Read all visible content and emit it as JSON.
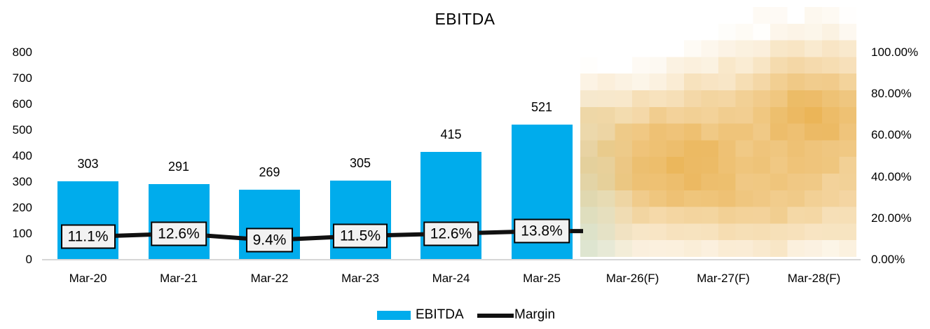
{
  "title": "EBITDA",
  "legend": {
    "items": [
      {
        "label": "EBITDA",
        "swatch": "bar"
      },
      {
        "label": "Margin",
        "swatch": "line"
      }
    ]
  },
  "colors": {
    "bar": "#00ACEC",
    "line": "#111111",
    "axis_line": "#d6d6d6",
    "label_box_bg": "#f2f2f2",
    "label_box_border": "#000000",
    "blur_amber": "#E9AF4B",
    "blur_green": "#C6D8BC",
    "blur_base": "#FFFFFF",
    "text": "#000000"
  },
  "axes": {
    "left": {
      "ticks": [
        {
          "label": "800",
          "value": 800
        },
        {
          "label": "700",
          "value": 700
        },
        {
          "label": "600",
          "value": 600
        },
        {
          "label": "500",
          "value": 500
        },
        {
          "label": "400",
          "value": 400
        },
        {
          "label": "300",
          "value": 300
        },
        {
          "label": "200",
          "value": 200
        },
        {
          "label": "100",
          "value": 100
        },
        {
          "label": "0",
          "value": 0
        }
      ]
    },
    "right": {
      "ticks": [
        {
          "label": "100.00%",
          "value": 100
        },
        {
          "label": "80.00%",
          "value": 80
        },
        {
          "label": "60.00%",
          "value": 60
        },
        {
          "label": "40.00%",
          "value": 40
        },
        {
          "label": "20.00%",
          "value": 20
        },
        {
          "label": "0.00%",
          "value": 0
        }
      ]
    }
  },
  "chart_data": {
    "type": "combo-bar-line",
    "title": "EBITDA",
    "categories": [
      "Mar-20",
      "Mar-21",
      "Mar-22",
      "Mar-23",
      "Mar-24",
      "Mar-25",
      "Mar-26(F)",
      "Mar-27(F)",
      "Mar-28(F)"
    ],
    "series": [
      {
        "name": "EBITDA",
        "type": "bar",
        "axis": "left",
        "values": [
          303,
          291,
          269,
          305,
          415,
          521,
          null,
          null,
          null
        ],
        "value_labels": [
          "303",
          "291",
          "269",
          "305",
          "415",
          "521"
        ],
        "color": "#00ACEC"
      },
      {
        "name": "Margin",
        "type": "line",
        "axis": "right",
        "values": [
          11.1,
          12.6,
          9.4,
          11.5,
          12.6,
          13.8,
          null,
          null,
          null
        ],
        "value_labels": [
          "11.1%",
          "12.6%",
          "9.4%",
          "11.5%",
          "12.6%",
          "13.8%"
        ],
        "color": "#111111"
      }
    ],
    "left_axis_range": [
      0,
      800
    ],
    "right_axis_range": [
      0,
      100
    ],
    "grid": false,
    "legend_position": "bottom",
    "redaction": {
      "description": "pixelated amber mosaic overlay hiding forecast bars",
      "covers_categories": [
        "Mar-26(F)",
        "Mar-27(F)",
        "Mar-28(F)"
      ]
    }
  }
}
